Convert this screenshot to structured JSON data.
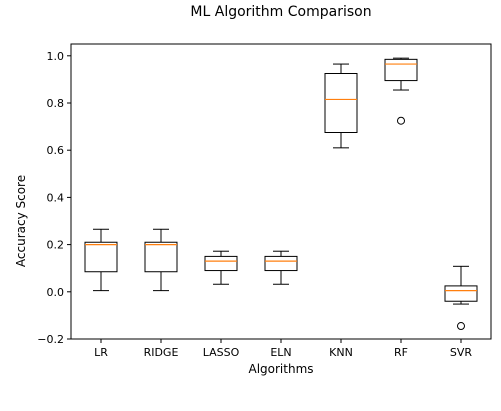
{
  "chart_data": {
    "type": "box",
    "title": "ML Algorithm Comparison",
    "xlabel": "Algorithms",
    "ylabel": "Accuracy Score",
    "ylim": [
      -0.2,
      1.05
    ],
    "yticks": [
      -0.2,
      0.0,
      0.2,
      0.4,
      0.6,
      0.8,
      1.0
    ],
    "grid": false,
    "categories": [
      "LR",
      "RIDGE",
      "LASSO",
      "ELN",
      "KNN",
      "RF",
      "SVR"
    ],
    "boxes": [
      {
        "label": "LR",
        "whisker_low": 0.005,
        "q1": 0.085,
        "median": 0.2,
        "q3": 0.21,
        "whisker_high": 0.265,
        "outliers": []
      },
      {
        "label": "RIDGE",
        "whisker_low": 0.005,
        "q1": 0.085,
        "median": 0.2,
        "q3": 0.21,
        "whisker_high": 0.265,
        "outliers": []
      },
      {
        "label": "LASSO",
        "whisker_low": 0.032,
        "q1": 0.09,
        "median": 0.13,
        "q3": 0.15,
        "whisker_high": 0.172,
        "outliers": []
      },
      {
        "label": "ELN",
        "whisker_low": 0.032,
        "q1": 0.09,
        "median": 0.13,
        "q3": 0.15,
        "whisker_high": 0.172,
        "outliers": []
      },
      {
        "label": "KNN",
        "whisker_low": 0.61,
        "q1": 0.675,
        "median": 0.815,
        "q3": 0.925,
        "whisker_high": 0.965,
        "outliers": []
      },
      {
        "label": "RF",
        "whisker_low": 0.855,
        "q1": 0.895,
        "median": 0.965,
        "q3": 0.985,
        "whisker_high": 0.99,
        "outliers": [
          0.725
        ]
      },
      {
        "label": "SVR",
        "whisker_low": -0.052,
        "q1": -0.04,
        "median": 0.005,
        "q3": 0.025,
        "whisker_high": 0.108,
        "outliers": [
          -0.145
        ]
      }
    ],
    "colors": {
      "box": "#000000",
      "median": "#ff7f0e",
      "outlier": "#000000"
    }
  }
}
